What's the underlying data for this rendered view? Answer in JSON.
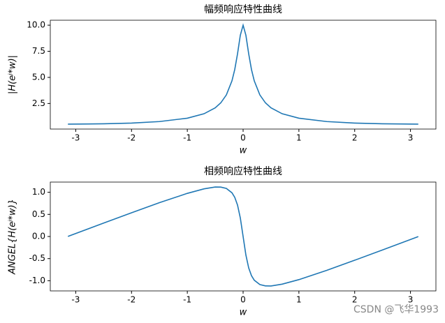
{
  "chart_data": [
    {
      "type": "line",
      "title": "幅频响应特性曲线",
      "xlabel": "w",
      "ylabel": "|H(eʲ*w)|",
      "x": [
        -3.14,
        -2.5,
        -2,
        -1.5,
        -1,
        -0.7,
        -0.5,
        -0.4,
        -0.3,
        -0.2,
        -0.15,
        -0.1,
        -0.05,
        0,
        0.05,
        0.1,
        0.15,
        0.2,
        0.3,
        0.4,
        0.5,
        0.7,
        1,
        1.5,
        2,
        2.5,
        3.14
      ],
      "series": [
        {
          "color": "#1f77b4",
          "values": [
            0.526,
            0.555,
            0.625,
            0.771,
            1.093,
            1.519,
            2.084,
            2.564,
            3.324,
            4.669,
            5.753,
            7.256,
            9.035,
            10,
            9.035,
            7.256,
            5.753,
            4.669,
            3.324,
            2.564,
            2.084,
            1.519,
            1.093,
            0.771,
            0.625,
            0.555,
            0.526
          ]
        }
      ],
      "xlim": [
        -3.456,
        3.456
      ],
      "xticks": [
        -3,
        -2,
        -1,
        0,
        1,
        2,
        3
      ],
      "ylim": [
        0.052,
        10.474
      ],
      "yticks": [
        2.5,
        {
          "value": 5,
          "label": "5.0"
        },
        7.5,
        {
          "value": 10,
          "label": "10.0"
        }
      ]
    },
    {
      "type": "line",
      "title": "相频响应特性曲线",
      "xlabel": "w",
      "ylabel": "ANGEL{H(eʲ*w)}",
      "x": [
        -3.14,
        -2.5,
        -2,
        -1.5,
        -1,
        -0.7,
        -0.5,
        -0.4,
        -0.3,
        -0.2,
        -0.15,
        -0.1,
        -0.05,
        0,
        0.05,
        0.1,
        0.15,
        0.2,
        0.3,
        0.4,
        0.5,
        0.7,
        1,
        1.5,
        2,
        2.5,
        3.14
      ],
      "series": [
        {
          "color": "#1f77b4",
          "values": [
            0.001,
            0.303,
            0.537,
            0.764,
            0.975,
            1.077,
            1.118,
            1.117,
            1.086,
            0.988,
            0.885,
            0.71,
            0.419,
            0,
            -0.419,
            -0.71,
            -0.885,
            -0.988,
            -1.086,
            -1.117,
            -1.118,
            -1.077,
            -0.975,
            -0.764,
            -0.537,
            -0.303,
            -0.001
          ]
        }
      ],
      "xlim": [
        -3.456,
        3.456
      ],
      "xticks": [
        -3,
        -2,
        -1,
        0,
        1,
        2,
        3
      ],
      "ylim": [
        -1.23,
        1.23
      ],
      "yticks": [
        {
          "value": -1,
          "label": "-1.0"
        },
        -0.5,
        {
          "value": 0,
          "label": "0.0"
        },
        0.5,
        {
          "value": 1,
          "label": "1.0"
        }
      ]
    }
  ],
  "watermark": "CSDN @飞华1993"
}
